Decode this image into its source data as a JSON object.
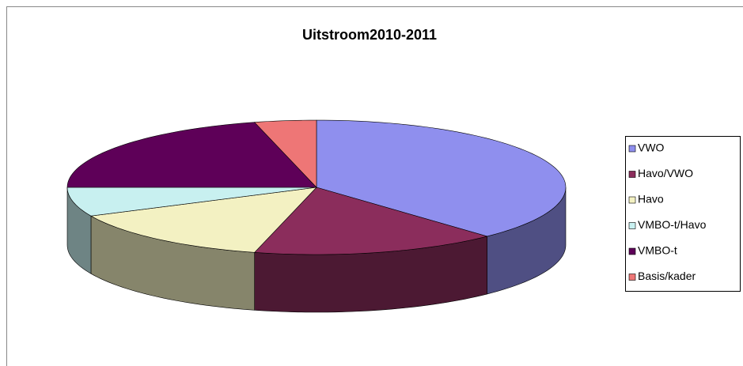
{
  "chart_data": {
    "type": "pie3d",
    "title": "Uitstroom2010-2011",
    "categories": [
      "VWO",
      "Havo/VWO",
      "Havo",
      "VMBO-t/Havo",
      "VMBO-t",
      "Basis/kader"
    ],
    "values": [
      38,
      16,
      14,
      7,
      21,
      4
    ],
    "colors": [
      "#8f8fee",
      "#8b2d5c",
      "#f3f1c2",
      "#c8f0f0",
      "#5e0058",
      "#ee7676"
    ],
    "legend": "right"
  }
}
